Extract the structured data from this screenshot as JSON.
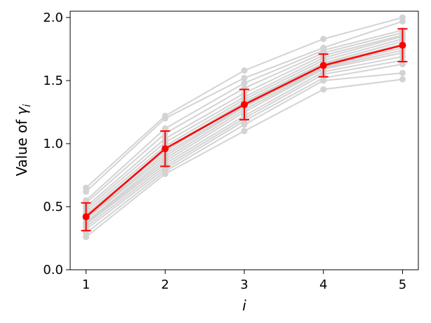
{
  "chart_data": {
    "type": "line",
    "xlabel": "i",
    "ylabel_prefix": "Value of ",
    "ylabel_symbol": "γ",
    "ylabel_subscript": "i",
    "x": [
      1,
      2,
      3,
      4,
      5
    ],
    "xlim": [
      0.8,
      5.2
    ],
    "ylim": [
      0.0,
      2.05
    ],
    "x_ticks": [
      1,
      2,
      3,
      4,
      5
    ],
    "x_tick_labels": [
      "1",
      "2",
      "3",
      "4",
      "5"
    ],
    "y_ticks": [
      0.0,
      0.5,
      1.0,
      1.5,
      2.0
    ],
    "y_tick_labels": [
      "0.0",
      "0.5",
      "1.0",
      "1.5",
      "2.0"
    ],
    "grid": false,
    "background_series_color": "#d3d3d3",
    "mean_series_color": "#ff0000",
    "background_series": [
      {
        "values": [
          0.26,
          0.76,
          1.1,
          1.43,
          1.51
        ]
      },
      {
        "values": [
          0.29,
          0.78,
          1.15,
          1.5,
          1.56
        ]
      },
      {
        "values": [
          0.32,
          0.8,
          1.18,
          1.52,
          1.63
        ]
      },
      {
        "values": [
          0.34,
          0.82,
          1.2,
          1.55,
          1.66
        ]
      },
      {
        "values": [
          0.36,
          0.84,
          1.22,
          1.57,
          1.69
        ]
      },
      {
        "values": [
          0.37,
          0.86,
          1.25,
          1.59,
          1.72
        ]
      },
      {
        "values": [
          0.38,
          0.88,
          1.27,
          1.6,
          1.74
        ]
      },
      {
        "values": [
          0.4,
          0.9,
          1.29,
          1.61,
          1.76
        ]
      },
      {
        "values": [
          0.41,
          0.92,
          1.3,
          1.62,
          1.78
        ]
      },
      {
        "values": [
          0.43,
          0.94,
          1.32,
          1.63,
          1.79
        ]
      },
      {
        "values": [
          0.44,
          0.96,
          1.33,
          1.64,
          1.81
        ]
      },
      {
        "values": [
          0.46,
          0.98,
          1.35,
          1.66,
          1.83
        ]
      },
      {
        "values": [
          0.48,
          1.01,
          1.37,
          1.68,
          1.85
        ]
      },
      {
        "values": [
          0.5,
          1.04,
          1.4,
          1.7,
          1.86
        ]
      },
      {
        "values": [
          0.53,
          1.08,
          1.44,
          1.72,
          1.88
        ]
      },
      {
        "values": [
          0.55,
          1.12,
          1.48,
          1.74,
          1.9
        ]
      },
      {
        "values": [
          0.62,
          1.2,
          1.52,
          1.76,
          1.97
        ]
      },
      {
        "values": [
          0.65,
          1.22,
          1.58,
          1.83,
          2.0
        ]
      }
    ],
    "mean_series": {
      "values": [
        0.42,
        0.96,
        1.31,
        1.62,
        1.78
      ],
      "error": [
        0.11,
        0.14,
        0.12,
        0.09,
        0.13
      ]
    }
  }
}
